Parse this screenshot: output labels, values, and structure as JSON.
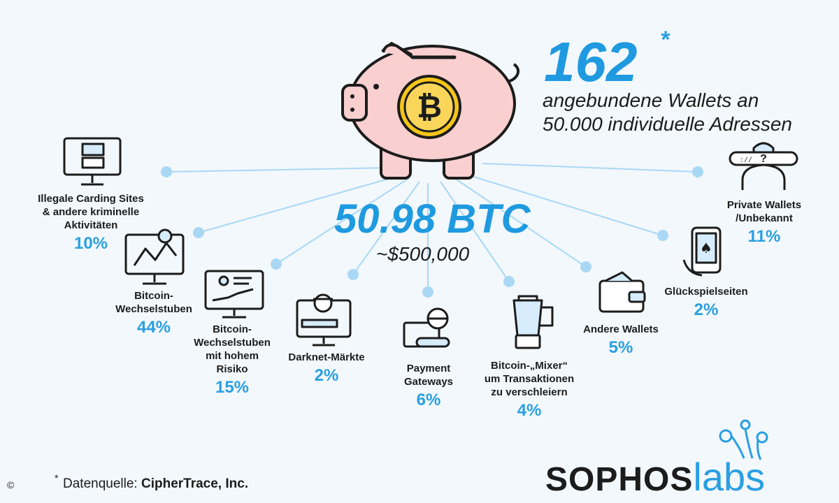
{
  "hero": {
    "count": "162",
    "asterisk": "*",
    "count_caption_1": "angebundene Wallets an",
    "count_caption_2": "50.000 individuelle Adressen",
    "btc_total": "50.98 BTC",
    "usd_total": "~$500,000"
  },
  "categories": [
    {
      "label": "Illegale Carding Sites\n& andere kriminelle\nAktivitäten",
      "percent": "10%",
      "share": 10
    },
    {
      "label": "Bitcoin-\nWechselstuben",
      "percent": "44%",
      "share": 44
    },
    {
      "label": "Bitcoin-\nWechselstuben\nmit hohem\nRisiko",
      "percent": "15%",
      "share": 15
    },
    {
      "label": "Darknet-Märkte",
      "percent": "2%",
      "share": 2
    },
    {
      "label": "Payment\nGateways",
      "percent": "6%",
      "share": 6
    },
    {
      "label": "Bitcoin-„Mixer“\num Transaktionen\nzu verschleiern",
      "percent": "4%",
      "share": 4
    },
    {
      "label": "Andere Wallets",
      "percent": "5%",
      "share": 5
    },
    {
      "label": "Glückspielseiten",
      "percent": "2%",
      "share": 2
    },
    {
      "label": "Private Wallets\n/Unbekannt",
      "percent": "11%",
      "share": 11
    }
  ],
  "footer": {
    "source_prefix": "Datenquelle:",
    "source_name": "CipherTrace, Inc.",
    "asterisk": "*",
    "copyright": "©",
    "brand_left": "SOPHOS",
    "brand_right": "labs"
  },
  "colors": {
    "accent_blue": "#2a9fe2",
    "dot_blue": "#a9d8f5",
    "pig_pink": "#f9cfd0",
    "coin_gold": "#f5c518",
    "dark": "#1c1c1c"
  }
}
